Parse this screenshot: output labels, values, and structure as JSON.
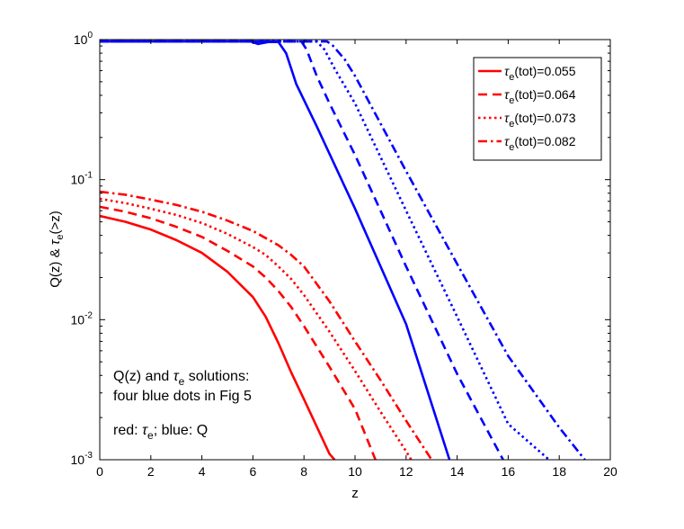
{
  "chart_data": {
    "type": "line",
    "title": "",
    "xlabel": "z",
    "ylabel": {
      "main": "Q(z)  & ",
      "tau": "τ",
      "sub": "e",
      "tail": "(>z)"
    },
    "xlim": [
      0,
      20
    ],
    "ylim": [
      0.001,
      1
    ],
    "yscale": "log",
    "grid": false,
    "x_ticks": [
      0,
      2,
      4,
      6,
      8,
      10,
      12,
      14,
      16,
      18,
      20
    ],
    "y_ticks": [
      {
        "value": 0.001,
        "base": "10",
        "exp": "-3"
      },
      {
        "value": 0.01,
        "base": "10",
        "exp": "-2"
      },
      {
        "value": 0.1,
        "base": "10",
        "exp": "-1"
      },
      {
        "value": 1,
        "base": "10",
        "exp": "0"
      }
    ],
    "colors": {
      "tau": "#ff0000",
      "Q": "#0000ff"
    },
    "legend": {
      "placement": "top-right",
      "entries": [
        {
          "tau": "τ",
          "sub": "e",
          "text": "(tot)=0.055",
          "dash": "solid"
        },
        {
          "tau": "τ",
          "sub": "e",
          "text": "(tot)=0.064",
          "dash": "dashed"
        },
        {
          "tau": "τ",
          "sub": "e",
          "text": "(tot)=0.073",
          "dash": "dotted"
        },
        {
          "tau": "τ",
          "sub": "e",
          "text": "(tot)=0.082",
          "dash": "dashdot"
        }
      ]
    },
    "series": [
      {
        "kind": "tau",
        "color": "#ff0000",
        "dash": "solid",
        "points": [
          [
            0,
            0.055
          ],
          [
            1,
            0.05
          ],
          [
            2,
            0.044
          ],
          [
            3,
            0.037
          ],
          [
            4,
            0.03
          ],
          [
            5,
            0.022
          ],
          [
            6,
            0.0145
          ],
          [
            6.5,
            0.0105
          ],
          [
            7,
            0.0068
          ],
          [
            7.5,
            0.0042
          ],
          [
            8,
            0.0027
          ],
          [
            9,
            0.0011
          ],
          [
            9.2,
            0.001
          ]
        ]
      },
      {
        "kind": "tau",
        "color": "#ff0000",
        "dash": "dashed",
        "points": [
          [
            0,
            0.064
          ],
          [
            1,
            0.059
          ],
          [
            2,
            0.053
          ],
          [
            3,
            0.046
          ],
          [
            4,
            0.039
          ],
          [
            5,
            0.031
          ],
          [
            6,
            0.024
          ],
          [
            6.5,
            0.02
          ],
          [
            7,
            0.016
          ],
          [
            7.5,
            0.0123
          ],
          [
            8,
            0.009
          ],
          [
            9,
            0.0046
          ],
          [
            10,
            0.0023
          ],
          [
            10.8,
            0.001
          ]
        ]
      },
      {
        "kind": "tau",
        "color": "#ff0000",
        "dash": "dotted",
        "points": [
          [
            0,
            0.073
          ],
          [
            1,
            0.068
          ],
          [
            2,
            0.062
          ],
          [
            3,
            0.056
          ],
          [
            4,
            0.049
          ],
          [
            5,
            0.041
          ],
          [
            6,
            0.033
          ],
          [
            6.5,
            0.029
          ],
          [
            7,
            0.024
          ],
          [
            7.5,
            0.0195
          ],
          [
            8,
            0.015
          ],
          [
            9,
            0.0082
          ],
          [
            10,
            0.0043
          ],
          [
            11,
            0.0022
          ],
          [
            12,
            0.00115
          ],
          [
            12.2,
            0.001
          ]
        ]
      },
      {
        "kind": "tau",
        "color": "#ff0000",
        "dash": "dashdot",
        "points": [
          [
            0,
            0.082
          ],
          [
            1,
            0.078
          ],
          [
            2,
            0.072
          ],
          [
            3,
            0.066
          ],
          [
            4,
            0.059
          ],
          [
            5,
            0.051
          ],
          [
            6,
            0.043
          ],
          [
            7,
            0.034
          ],
          [
            7.5,
            0.029
          ],
          [
            8,
            0.024
          ],
          [
            9,
            0.0135
          ],
          [
            10,
            0.007
          ],
          [
            11,
            0.0037
          ],
          [
            12,
            0.0019
          ],
          [
            13,
            0.001
          ],
          [
            13.2,
            0.0009
          ]
        ]
      },
      {
        "kind": "Q",
        "color": "#0000ff",
        "dash": "solid",
        "points": [
          [
            0,
            0.97
          ],
          [
            5.9,
            0.97
          ],
          [
            6.2,
            0.93
          ],
          [
            6.6,
            0.96
          ],
          [
            7.0,
            0.96
          ],
          [
            7.3,
            0.8
          ],
          [
            7.7,
            0.48
          ],
          [
            8.5,
            0.24
          ],
          [
            10,
            0.062
          ],
          [
            12,
            0.0093
          ],
          [
            13.7,
            0.001
          ]
        ]
      },
      {
        "kind": "Q",
        "color": "#0000ff",
        "dash": "dashed",
        "points": [
          [
            0,
            0.97
          ],
          [
            7.9,
            0.97
          ],
          [
            8.1,
            0.85
          ],
          [
            8.5,
            0.55
          ],
          [
            9,
            0.35
          ],
          [
            10,
            0.15
          ],
          [
            12,
            0.024
          ],
          [
            14,
            0.0041
          ],
          [
            15.8,
            0.001
          ]
        ]
      },
      {
        "kind": "Q",
        "color": "#0000ff",
        "dash": "dotted",
        "points": [
          [
            0,
            0.97
          ],
          [
            8.5,
            0.97
          ],
          [
            8.8,
            0.85
          ],
          [
            9.2,
            0.62
          ],
          [
            10,
            0.35
          ],
          [
            12,
            0.06
          ],
          [
            14,
            0.0105
          ],
          [
            16,
            0.0018
          ],
          [
            17.6,
            0.001
          ]
        ]
      },
      {
        "kind": "Q",
        "color": "#0000ff",
        "dash": "dashdot",
        "points": [
          [
            0,
            0.97
          ],
          [
            8.9,
            0.97
          ],
          [
            9.1,
            0.92
          ],
          [
            9.6,
            0.72
          ],
          [
            10,
            0.55
          ],
          [
            12,
            0.115
          ],
          [
            14,
            0.025
          ],
          [
            16,
            0.0055
          ],
          [
            18,
            0.0017
          ],
          [
            19,
            0.001
          ]
        ]
      }
    ],
    "annotations": {
      "line1_a": "Q(z) and ",
      "line1_tau": "τ",
      "line1_sub": "e",
      "line1_b": " solutions:",
      "line2": "four blue dots in Fig 5",
      "line3_a": "red: ",
      "line3_tau": "τ",
      "line3_sub": "e",
      "line3_b": "; blue: Q"
    }
  }
}
